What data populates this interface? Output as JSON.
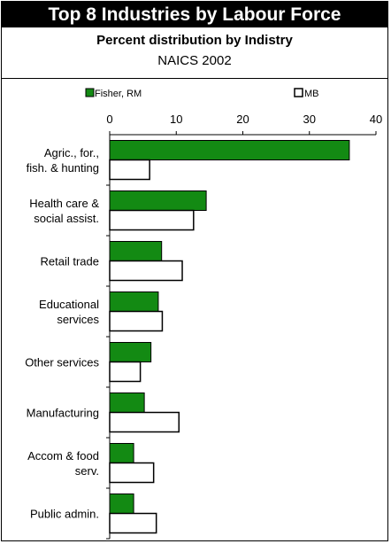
{
  "title": "Top 8 Industries by Labour Force",
  "subtitle": "Percent distribution by Indistry",
  "subtitle2": "NAICS 2002",
  "colors": {
    "series1": "#138a13",
    "series2": "#ffffff",
    "stroke": "#000000"
  },
  "chart_data": {
    "type": "bar",
    "orientation": "horizontal",
    "categories": [
      [
        "Agric., for.,",
        "fish. & hunting"
      ],
      [
        "Health care &",
        "social assist."
      ],
      [
        "Retail trade"
      ],
      [
        "Educational",
        "services"
      ],
      [
        "Other services"
      ],
      [
        "Manufacturing"
      ],
      [
        "Accom & food",
        "serv."
      ],
      [
        "Public admin."
      ]
    ],
    "series": [
      {
        "name": "Fisher, RM",
        "values": [
          36.0,
          14.5,
          7.8,
          7.3,
          6.2,
          5.2,
          3.6,
          3.6
        ]
      },
      {
        "name": "MB",
        "values": [
          6.0,
          12.6,
          10.9,
          7.9,
          4.6,
          10.4,
          6.6,
          7.0
        ]
      }
    ],
    "xlim": [
      0,
      40
    ],
    "xticks": [
      "0",
      "10",
      "20",
      "30",
      "40"
    ],
    "legend_position": "top"
  }
}
